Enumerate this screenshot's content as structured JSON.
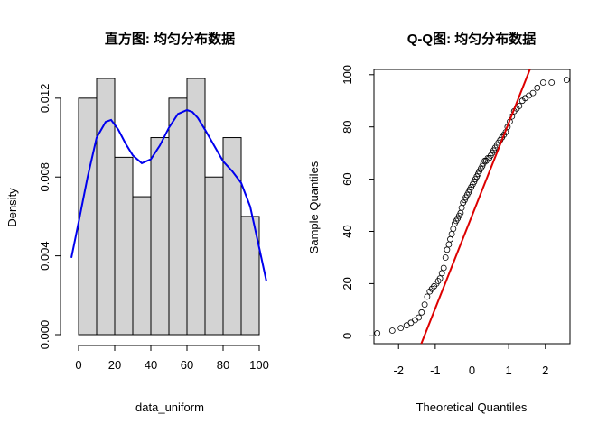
{
  "chart_data": [
    {
      "type": "histogram",
      "title": "直方图: 均匀分布数据",
      "xlabel": "data_uniform",
      "ylabel": "Density",
      "xlim": [
        -4,
        105
      ],
      "ylim": [
        0,
        0.013
      ],
      "xticks": [
        0,
        20,
        40,
        60,
        80,
        100
      ],
      "xtick_labels": [
        "0",
        "20",
        "40",
        "60",
        "80",
        "100"
      ],
      "yticks": [
        0,
        0.004,
        0.008,
        0.012
      ],
      "ytick_labels": [
        "0.000",
        "0.004",
        "0.008",
        "0.012"
      ],
      "bin_edges": [
        0,
        10,
        20,
        30,
        40,
        50,
        60,
        70,
        80,
        90,
        100
      ],
      "values": [
        0.012,
        0.013,
        0.009,
        0.007,
        0.01,
        0.012,
        0.013,
        0.008,
        0.01,
        0.006
      ],
      "bar_color": "#d3d3d3",
      "density_curve": {
        "color": "#0000ee",
        "x": [
          -4,
          0,
          5,
          10,
          15,
          18,
          22,
          26,
          30,
          35,
          40,
          45,
          50,
          55,
          60,
          63,
          66,
          70,
          75,
          80,
          85,
          90,
          95,
          100,
          104
        ],
        "y": [
          0.0039,
          0.0057,
          0.008,
          0.01,
          0.0108,
          0.0109,
          0.0104,
          0.0097,
          0.0091,
          0.0087,
          0.0089,
          0.0096,
          0.0105,
          0.0112,
          0.0114,
          0.0113,
          0.011,
          0.0104,
          0.0096,
          0.0088,
          0.0083,
          0.0077,
          0.0065,
          0.0044,
          0.0027
        ]
      }
    },
    {
      "type": "scatter",
      "title": "Q-Q图: 均匀分布数据",
      "xlabel": "Theoretical Quantiles",
      "ylabel": "Sample Quantiles",
      "xlim": [
        -2.67,
        2.67
      ],
      "ylim": [
        -3,
        102
      ],
      "xticks": [
        -2,
        -1,
        0,
        1,
        2
      ],
      "xtick_labels": [
        "-2",
        "-1",
        "0",
        "1",
        "2"
      ],
      "yticks": [
        0,
        20,
        40,
        60,
        80,
        100
      ],
      "ytick_labels": [
        "0",
        "20",
        "40",
        "60",
        "80",
        "100"
      ],
      "point_color": "#000000",
      "x": [
        -2.58,
        -2.17,
        -1.94,
        -1.78,
        -1.66,
        -1.55,
        -1.45,
        -1.37,
        -1.29,
        -1.22,
        -1.15,
        -1.09,
        -1.03,
        -0.97,
        -0.92,
        -0.87,
        -0.82,
        -0.77,
        -0.72,
        -0.68,
        -0.63,
        -0.59,
        -0.55,
        -0.51,
        -0.47,
        -0.43,
        -0.39,
        -0.35,
        -0.31,
        -0.28,
        -0.24,
        -0.2,
        -0.17,
        -0.13,
        -0.09,
        -0.06,
        -0.02,
        0.02,
        0.06,
        0.09,
        0.13,
        0.17,
        0.2,
        0.24,
        0.28,
        0.31,
        0.35,
        0.39,
        0.43,
        0.47,
        0.51,
        0.55,
        0.59,
        0.63,
        0.68,
        0.72,
        0.77,
        0.82,
        0.87,
        0.92,
        0.97,
        1.03,
        1.09,
        1.15,
        1.22,
        1.29,
        1.37,
        1.45,
        1.55,
        1.66,
        1.78,
        1.94,
        2.17,
        2.58
      ],
      "y": [
        1,
        2,
        3,
        4,
        5,
        6,
        7,
        9,
        12,
        15,
        17,
        18,
        19,
        20,
        21,
        22,
        24,
        26,
        30,
        33,
        35,
        37,
        39,
        41,
        43,
        44,
        45,
        46,
        47,
        49,
        51,
        52,
        53,
        54,
        55,
        56,
        57,
        58,
        59,
        60,
        61,
        62,
        63,
        64,
        65,
        66,
        67,
        67,
        68,
        68,
        69,
        70,
        71,
        72,
        73,
        74,
        75,
        76,
        77,
        78,
        80,
        82,
        84,
        86,
        87,
        88,
        90,
        91,
        92,
        93,
        95,
        97,
        97,
        98
      ],
      "reference_line": {
        "slope": 35.5,
        "intercept": 46,
        "color": "#dd0000"
      }
    }
  ]
}
